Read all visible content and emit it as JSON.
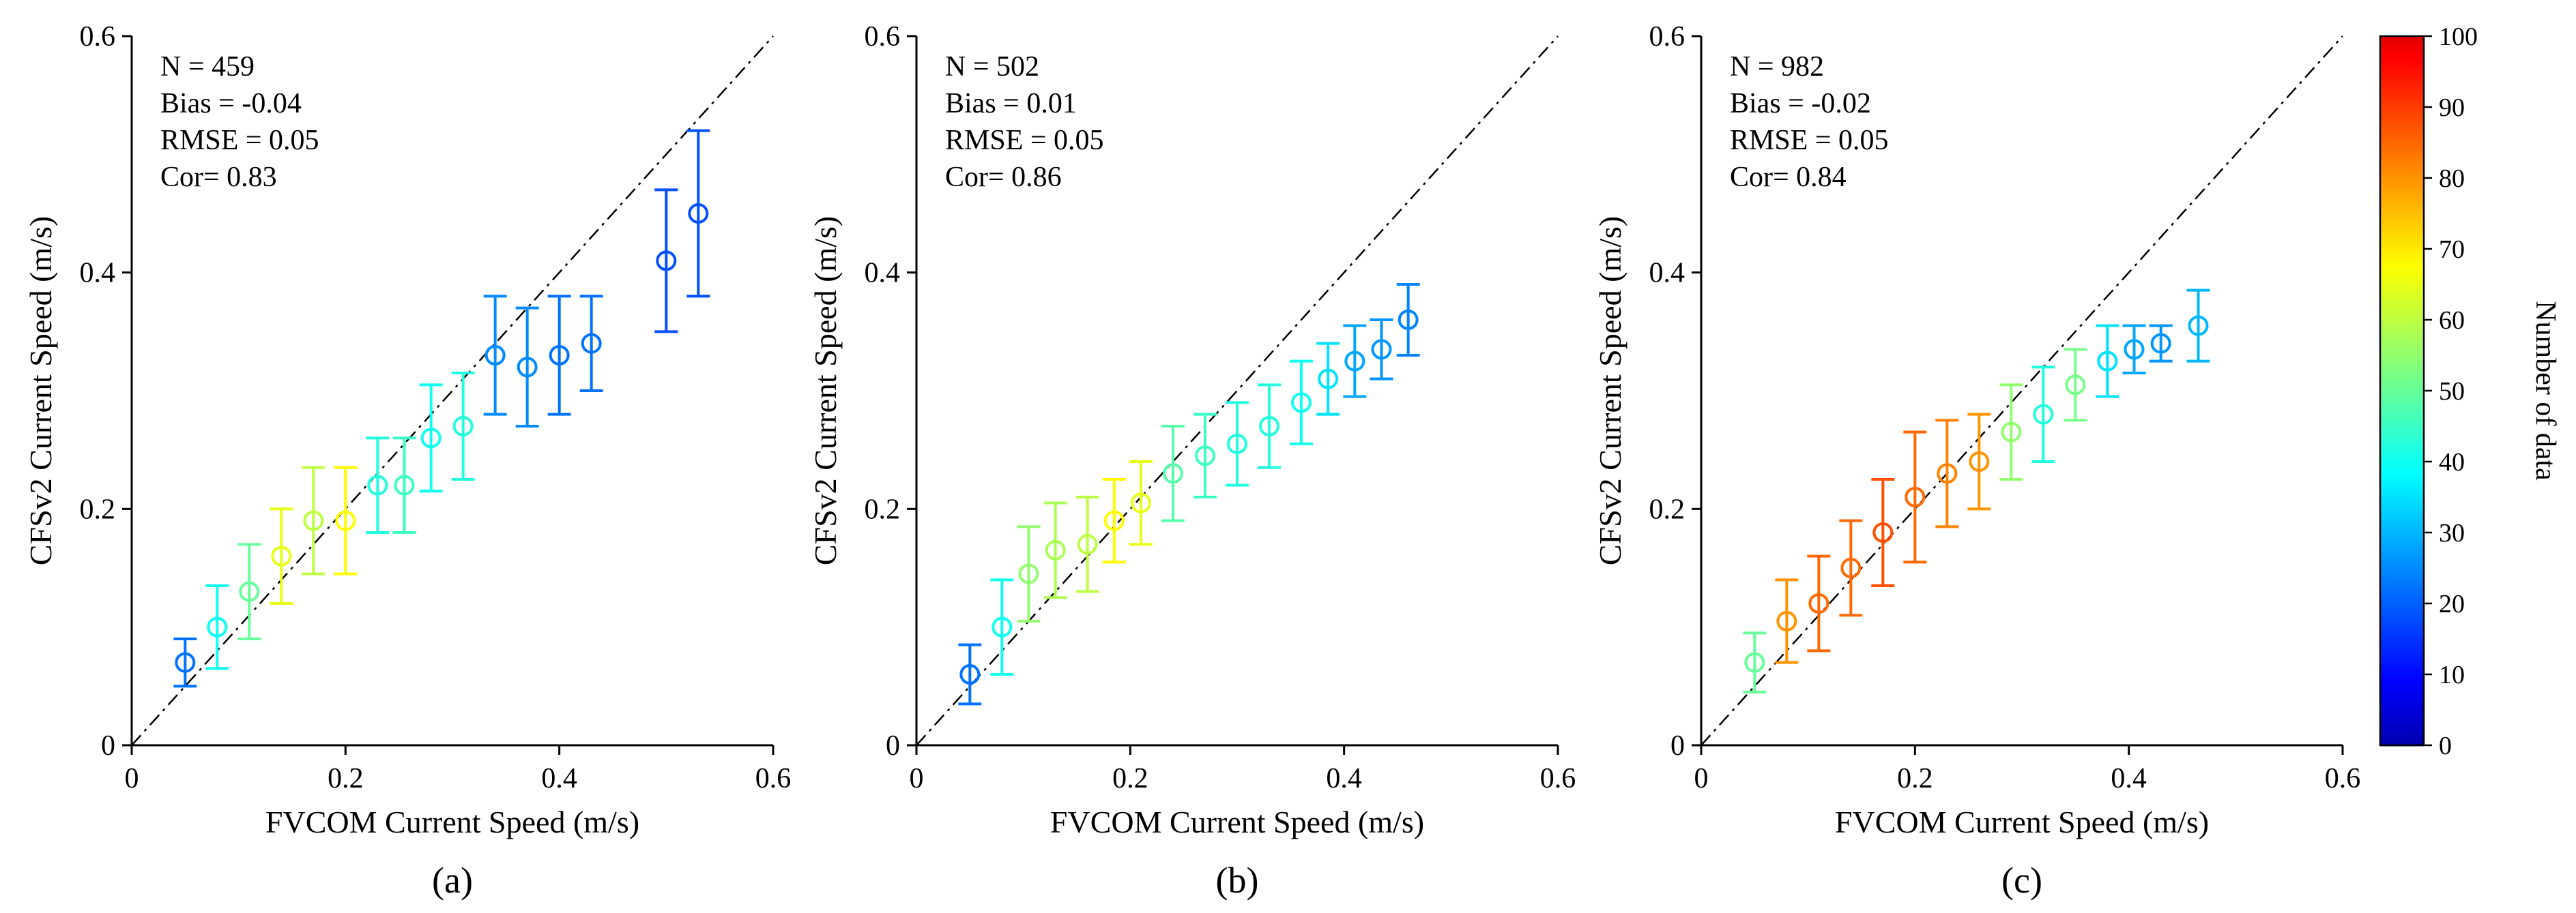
{
  "figure": {
    "background": "#ffffff",
    "identity_line_color": "#000000",
    "axis_color": "#000000"
  },
  "colorbar": {
    "label": "Number of data",
    "min": 0,
    "max": 100,
    "ticks": [
      0,
      10,
      20,
      30,
      40,
      50,
      60,
      70,
      80,
      90,
      100
    ],
    "colormap": "jet"
  },
  "point_fields": [
    "x",
    "y",
    "err",
    "count"
  ],
  "chart_data": [
    {
      "type": "scatter",
      "caption": "(a)",
      "stats": [
        "N = 459",
        "Bias = -0.04",
        "RMSE = 0.05",
        "Cor= 0.83"
      ],
      "xlabel": "FVCOM Current Speed (m/s)",
      "ylabel": "CFSv2 Current Speed (m/s)",
      "xlim": [
        0,
        0.6
      ],
      "ylim": [
        0,
        0.6
      ],
      "xticks": [
        0,
        0.2,
        0.4,
        0.6
      ],
      "yticks": [
        0,
        0.2,
        0.4,
        0.6
      ],
      "xtick_labels": [
        "0",
        "0.2",
        "0.4",
        "0.6"
      ],
      "ytick_labels": [
        "0",
        "0.2",
        "0.4",
        "0.6"
      ],
      "identity_line": true,
      "identity_line_style": "dash-dot",
      "points": [
        [
          0.05,
          0.07,
          0.02,
          22
        ],
        [
          0.08,
          0.1,
          0.035,
          40
        ],
        [
          0.11,
          0.13,
          0.04,
          50
        ],
        [
          0.14,
          0.16,
          0.04,
          65
        ],
        [
          0.17,
          0.19,
          0.045,
          60
        ],
        [
          0.2,
          0.19,
          0.045,
          68
        ],
        [
          0.23,
          0.22,
          0.04,
          42
        ],
        [
          0.255,
          0.22,
          0.04,
          45
        ],
        [
          0.28,
          0.26,
          0.045,
          40
        ],
        [
          0.31,
          0.27,
          0.045,
          42
        ],
        [
          0.34,
          0.33,
          0.05,
          25
        ],
        [
          0.37,
          0.32,
          0.05,
          25
        ],
        [
          0.4,
          0.33,
          0.05,
          22
        ],
        [
          0.43,
          0.34,
          0.04,
          22
        ],
        [
          0.5,
          0.41,
          0.06,
          18
        ],
        [
          0.53,
          0.45,
          0.07,
          18
        ]
      ]
    },
    {
      "type": "scatter",
      "caption": "(b)",
      "stats": [
        "N = 502",
        "Bias = 0.01",
        "RMSE = 0.05",
        "Cor= 0.86"
      ],
      "xlabel": "FVCOM Current Speed (m/s)",
      "ylabel": "CFSv2 Current Speed (m/s)",
      "xlim": [
        0,
        0.6
      ],
      "ylim": [
        0,
        0.6
      ],
      "xticks": [
        0,
        0.2,
        0.4,
        0.6
      ],
      "yticks": [
        0,
        0.2,
        0.4,
        0.6
      ],
      "xtick_labels": [
        "0",
        "0.2",
        "0.4",
        "0.6"
      ],
      "ytick_labels": [
        "0",
        "0.2",
        "0.4",
        "0.6"
      ],
      "identity_line": true,
      "identity_line_style": "dash-dot",
      "points": [
        [
          0.05,
          0.06,
          0.025,
          22
        ],
        [
          0.08,
          0.1,
          0.04,
          40
        ],
        [
          0.105,
          0.145,
          0.04,
          55
        ],
        [
          0.13,
          0.165,
          0.04,
          58
        ],
        [
          0.16,
          0.17,
          0.04,
          60
        ],
        [
          0.185,
          0.19,
          0.035,
          68
        ],
        [
          0.21,
          0.205,
          0.035,
          65
        ],
        [
          0.24,
          0.23,
          0.04,
          48
        ],
        [
          0.27,
          0.245,
          0.035,
          45
        ],
        [
          0.3,
          0.255,
          0.035,
          42
        ],
        [
          0.33,
          0.27,
          0.035,
          42
        ],
        [
          0.36,
          0.29,
          0.035,
          40
        ],
        [
          0.385,
          0.31,
          0.03,
          35
        ],
        [
          0.41,
          0.325,
          0.03,
          28
        ],
        [
          0.435,
          0.335,
          0.025,
          26
        ],
        [
          0.46,
          0.36,
          0.03,
          24
        ]
      ]
    },
    {
      "type": "scatter",
      "caption": "(c)",
      "stats": [
        "N = 982",
        "Bias = -0.02",
        "RMSE = 0.05",
        "Cor= 0.84"
      ],
      "xlabel": "FVCOM Current Speed (m/s)",
      "ylabel": "CFSv2 Current Speed (m/s)",
      "xlim": [
        0,
        0.6
      ],
      "ylim": [
        0,
        0.6
      ],
      "xticks": [
        0,
        0.2,
        0.4,
        0.6
      ],
      "yticks": [
        0,
        0.2,
        0.4,
        0.6
      ],
      "xtick_labels": [
        "0",
        "0.2",
        "0.4",
        "0.6"
      ],
      "ytick_labels": [
        "0",
        "0.2",
        "0.4",
        "0.6"
      ],
      "identity_line": true,
      "identity_line_style": "dash-dot",
      "points": [
        [
          0.05,
          0.07,
          0.025,
          50
        ],
        [
          0.08,
          0.105,
          0.035,
          80
        ],
        [
          0.11,
          0.12,
          0.04,
          85
        ],
        [
          0.14,
          0.15,
          0.04,
          85
        ],
        [
          0.17,
          0.18,
          0.045,
          88
        ],
        [
          0.2,
          0.21,
          0.055,
          85
        ],
        [
          0.23,
          0.23,
          0.045,
          82
        ],
        [
          0.26,
          0.24,
          0.04,
          80
        ],
        [
          0.29,
          0.265,
          0.04,
          55
        ],
        [
          0.32,
          0.28,
          0.04,
          42
        ],
        [
          0.35,
          0.305,
          0.03,
          52
        ],
        [
          0.38,
          0.325,
          0.03,
          35
        ],
        [
          0.405,
          0.335,
          0.02,
          28
        ],
        [
          0.43,
          0.34,
          0.015,
          26
        ],
        [
          0.465,
          0.355,
          0.03,
          30
        ]
      ]
    }
  ]
}
